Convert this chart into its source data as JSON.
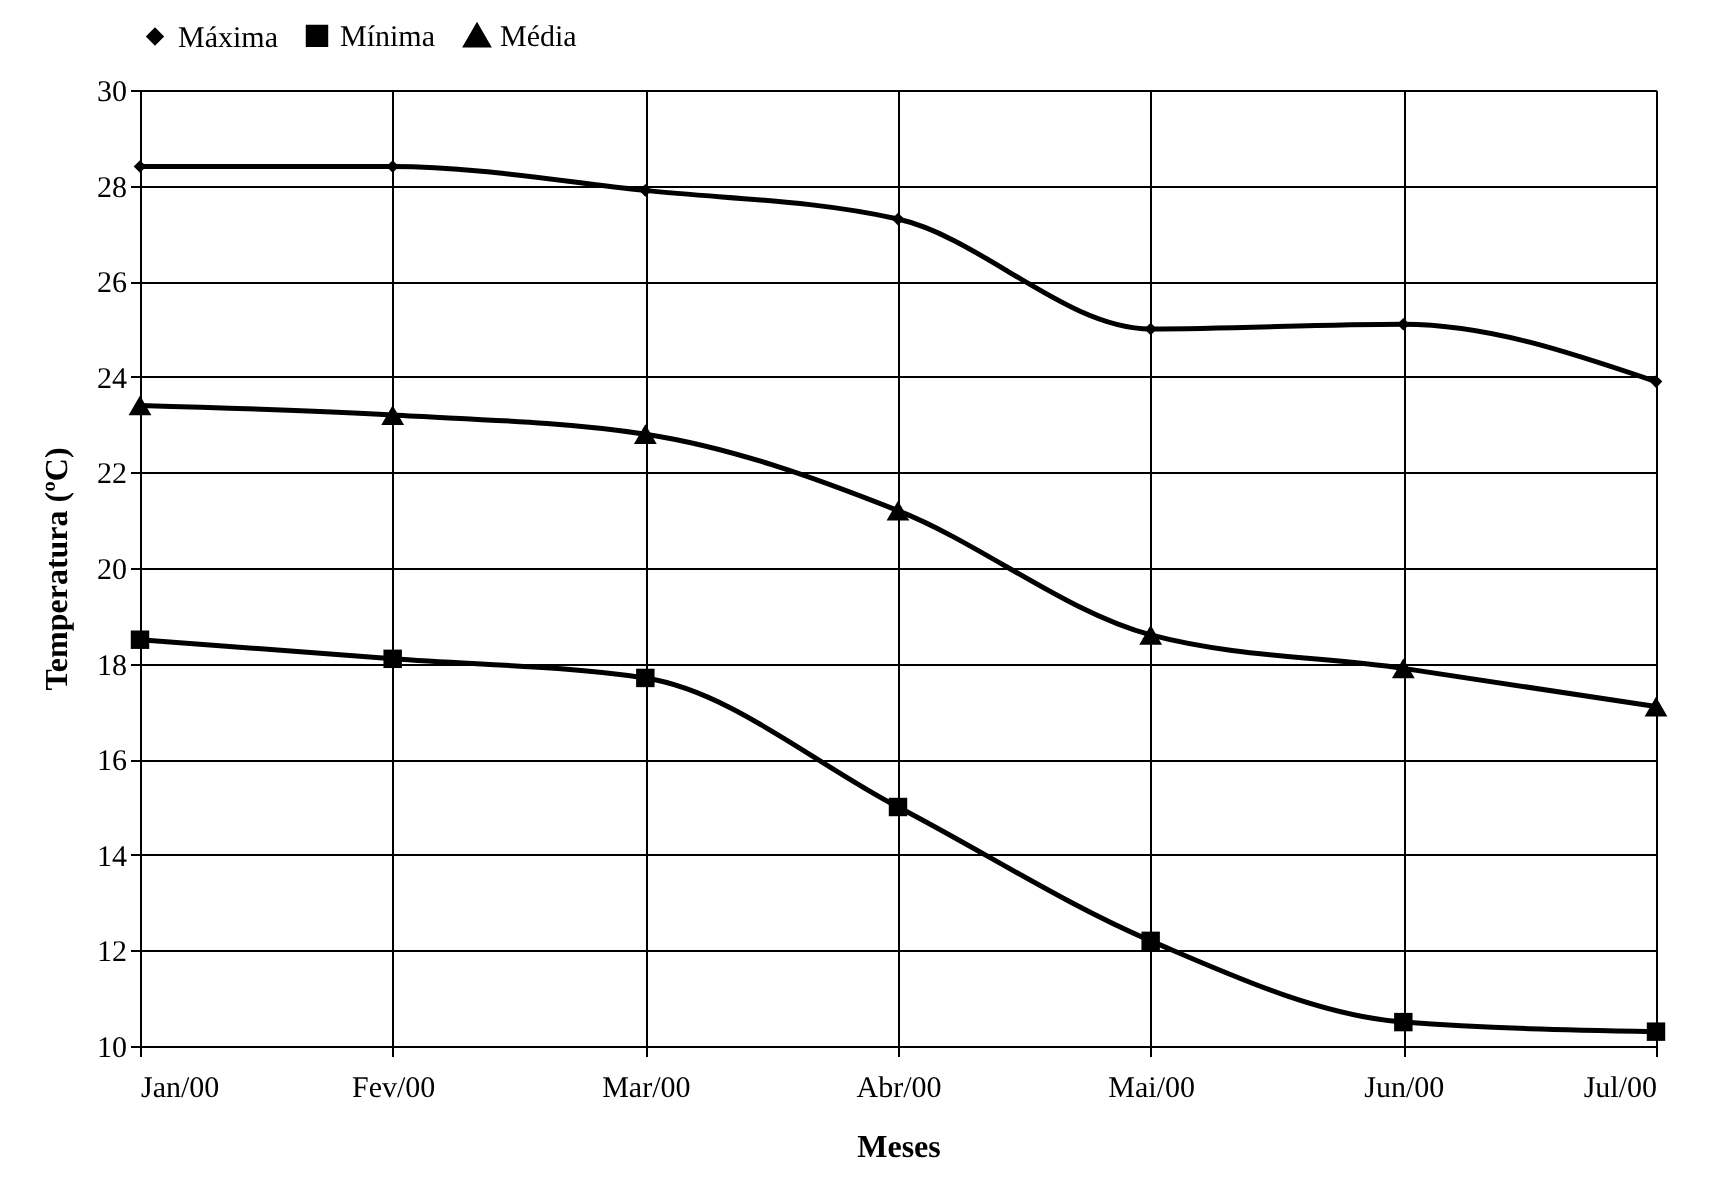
{
  "chart_data": {
    "type": "line",
    "xlabel": "Meses",
    "ylabel": "Temperatura (ºC)",
    "categories": [
      "Jan/00",
      "Fev/00",
      "Mar/00",
      "Abr/00",
      "Mai/00",
      "Jun/00",
      "Jul/00"
    ],
    "series": [
      {
        "name": "Máxima",
        "color": "#000000",
        "marker": "diamond",
        "values": [
          28.4,
          28.4,
          27.9,
          27.3,
          25.0,
          25.1,
          23.9
        ]
      },
      {
        "name": "Mínima",
        "color": "#000000",
        "marker": "square",
        "values": [
          18.5,
          18.1,
          17.7,
          15.0,
          12.2,
          10.5,
          10.3
        ]
      },
      {
        "name": "Média",
        "color": "#000000",
        "marker": "triangle",
        "values": [
          23.4,
          23.2,
          22.8,
          21.2,
          18.6,
          17.9,
          17.1
        ]
      }
    ],
    "ylim": [
      10,
      30
    ],
    "yticks": [
      10,
      12,
      14,
      16,
      18,
      20,
      22,
      24,
      26,
      28,
      30
    ],
    "grid": true,
    "legend": "top",
    "line_style": "solid"
  }
}
